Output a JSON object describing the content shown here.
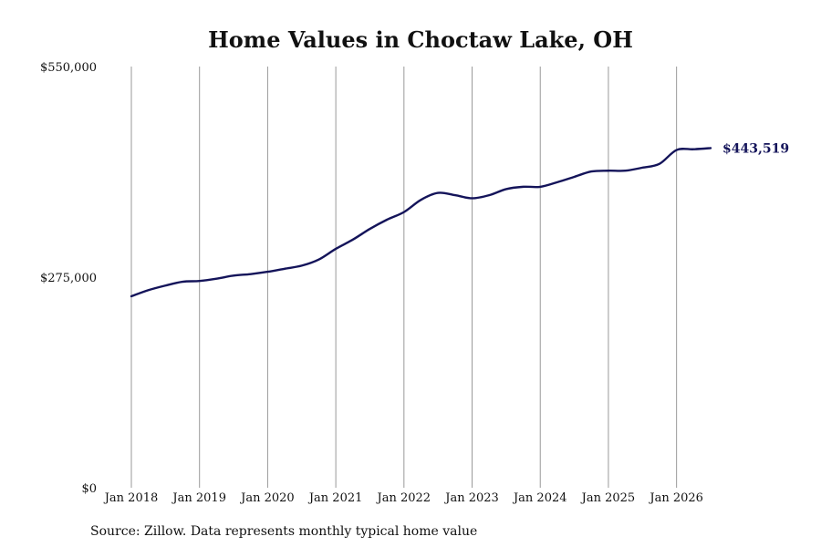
{
  "chart_data": {
    "type": "line",
    "title": "Home Values in Choctaw Lake, OH",
    "xlabel": "",
    "ylabel": "",
    "ylim": [
      0,
      550000
    ],
    "y_ticks": [
      {
        "value": 0,
        "label": "$0"
      },
      {
        "value": 275000,
        "label": "$275,000"
      },
      {
        "value": 550000,
        "label": "$550,000"
      }
    ],
    "x_ticks": [
      {
        "year": 2018,
        "label": "Jan 2018"
      },
      {
        "year": 2019,
        "label": "Jan 2019"
      },
      {
        "year": 2020,
        "label": "Jan 2020"
      },
      {
        "year": 2021,
        "label": "Jan 2021"
      },
      {
        "year": 2022,
        "label": "Jan 2022"
      },
      {
        "year": 2023,
        "label": "Jan 2023"
      },
      {
        "year": 2024,
        "label": "Jan 2024"
      },
      {
        "year": 2025,
        "label": "Jan 2025"
      },
      {
        "year": 2026,
        "label": "Jan 2026"
      }
    ],
    "x_range": [
      "2018-01",
      "2026-07"
    ],
    "grid": "vertical",
    "legend": "none",
    "color": "#14145a",
    "grid_color": "#999999",
    "series": [
      {
        "points": [
          [
            "2018-01",
            250000
          ],
          [
            "2018-04",
            258000
          ],
          [
            "2018-07",
            264000
          ],
          [
            "2018-10",
            269000
          ],
          [
            "2019-01",
            270000
          ],
          [
            "2019-04",
            273000
          ],
          [
            "2019-07",
            277000
          ],
          [
            "2019-10",
            279000
          ],
          [
            "2020-01",
            282000
          ],
          [
            "2020-04",
            286000
          ],
          [
            "2020-07",
            290000
          ],
          [
            "2020-10",
            298000
          ],
          [
            "2021-01",
            312000
          ],
          [
            "2021-04",
            324000
          ],
          [
            "2021-07",
            338000
          ],
          [
            "2021-10",
            350000
          ],
          [
            "2022-01",
            360000
          ],
          [
            "2022-04",
            376000
          ],
          [
            "2022-07",
            385000
          ],
          [
            "2022-10",
            382000
          ],
          [
            "2023-01",
            378000
          ],
          [
            "2023-04",
            382000
          ],
          [
            "2023-07",
            390000
          ],
          [
            "2023-10",
            393000
          ],
          [
            "2024-01",
            393000
          ],
          [
            "2024-04",
            399000
          ],
          [
            "2024-07",
            406000
          ],
          [
            "2024-10",
            413000
          ],
          [
            "2025-01",
            414000
          ],
          [
            "2025-04",
            414000
          ],
          [
            "2025-07",
            418000
          ],
          [
            "2025-10",
            423000
          ],
          [
            "2026-01",
            441000
          ],
          [
            "2026-04",
            442000
          ],
          [
            "2026-07",
            443519
          ]
        ]
      }
    ],
    "end_label": "$443,519"
  },
  "footer": {
    "source": "Source: Zillow. Data represents monthly typical home value"
  }
}
